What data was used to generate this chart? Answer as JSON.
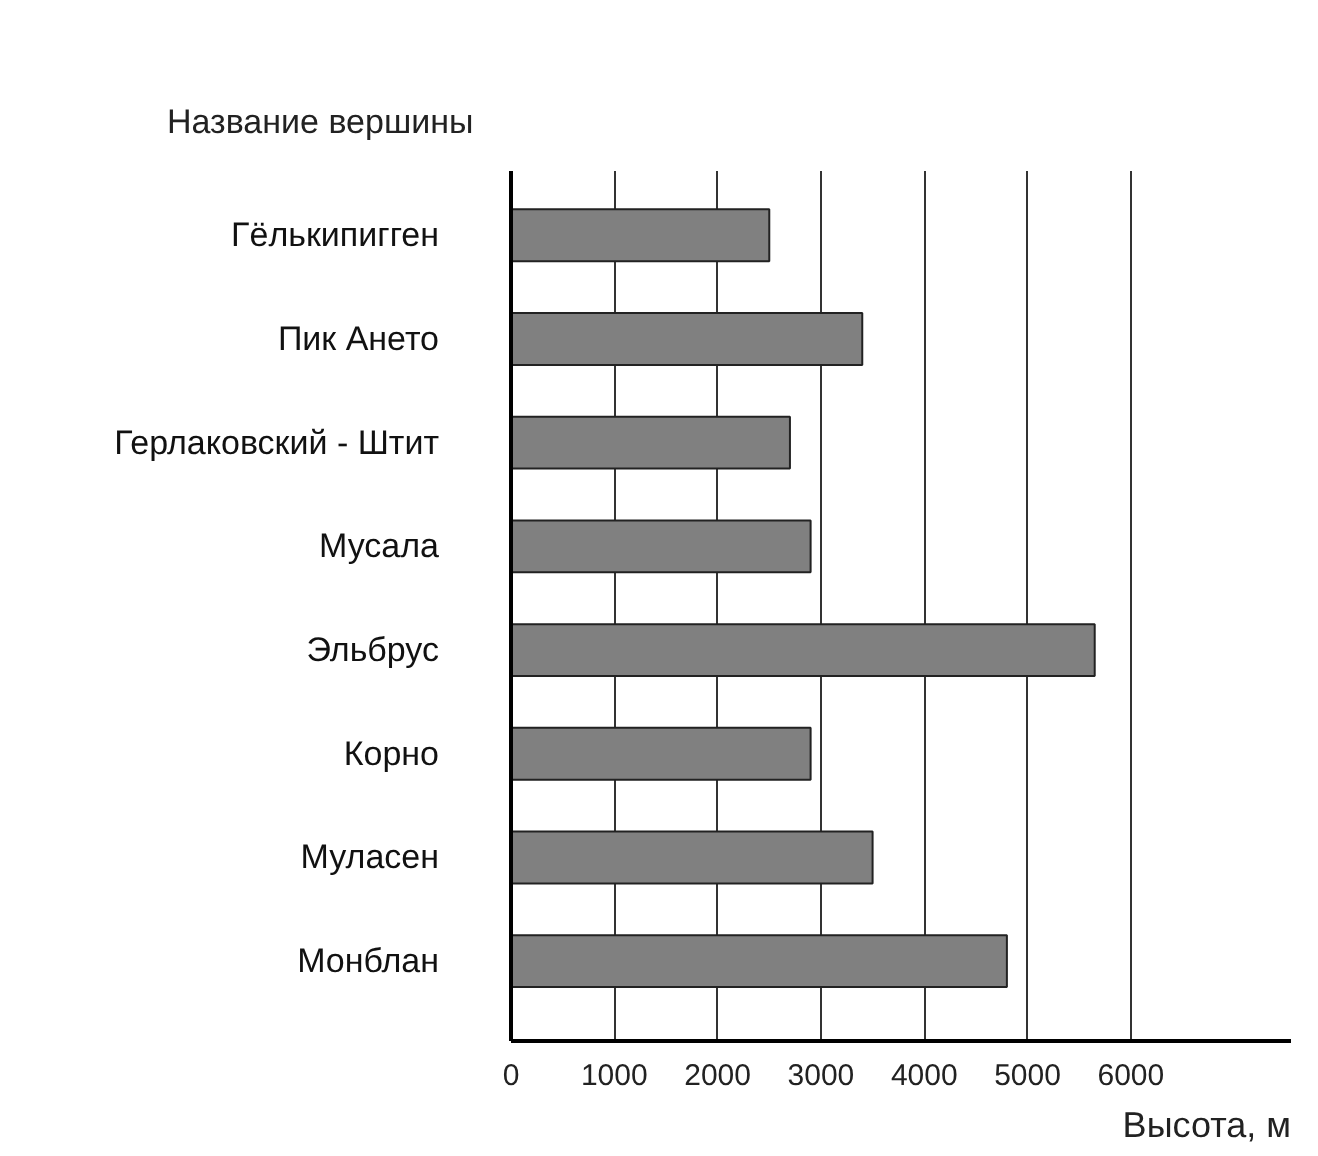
{
  "chart_data": {
    "type": "bar",
    "orientation": "horizontal",
    "ylabel": "Название вершины",
    "xlabel": "Высота, м",
    "categories": [
      "Гёлькипигген",
      "Пик Ането",
      "Герлаковский - Штит",
      "Мусала",
      "Эльбрус",
      "Корно",
      "Муласен",
      "Монблан"
    ],
    "values": [
      2500,
      3400,
      2700,
      2900,
      5650,
      2900,
      3500,
      4800
    ],
    "color": "#808080",
    "xlim": [
      0,
      7550
    ],
    "xticks": [
      0,
      1000,
      2000,
      3000,
      4000,
      5000,
      6000
    ],
    "grid": "x"
  }
}
